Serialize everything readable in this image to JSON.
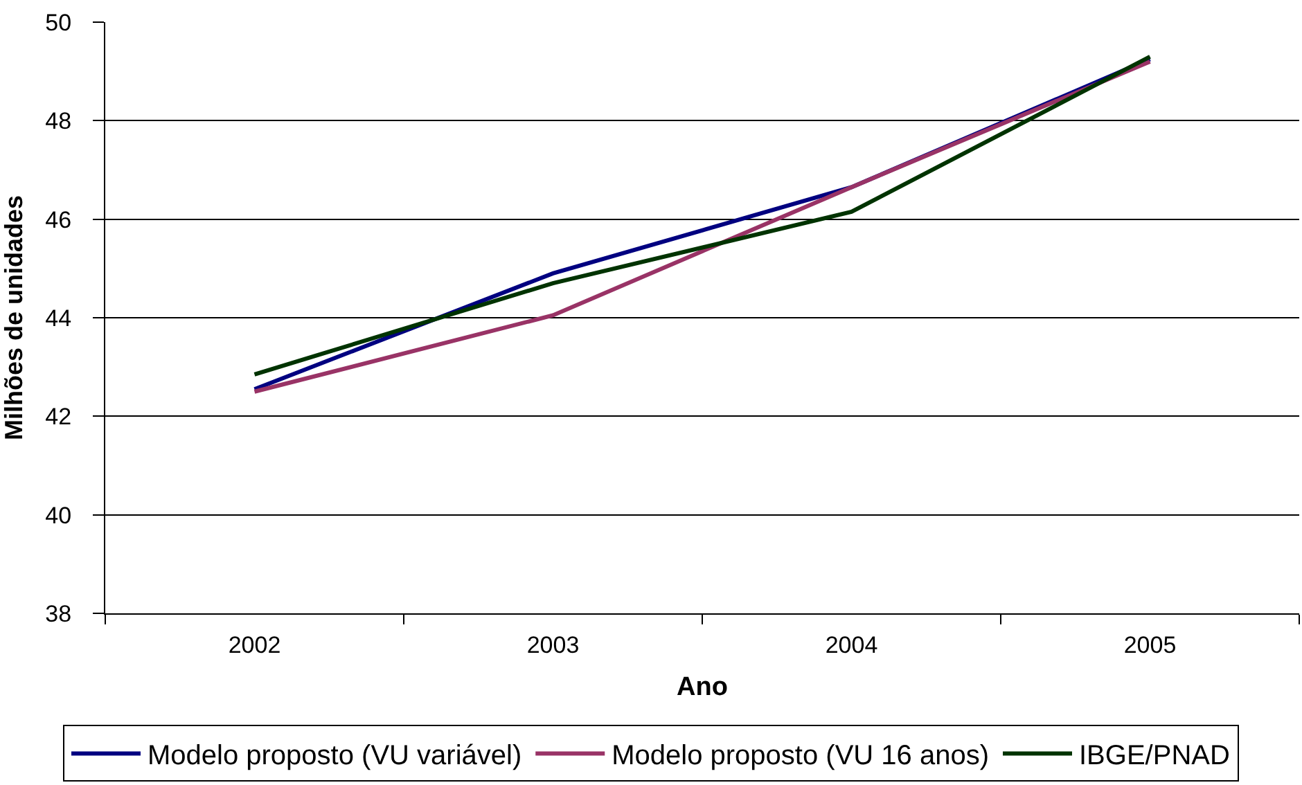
{
  "chart_data": {
    "type": "line",
    "xlabel": "Ano",
    "ylabel": "Milhões de unidades",
    "categories": [
      "2002",
      "2003",
      "2004",
      "2005"
    ],
    "series": [
      {
        "name": "Modelo proposto (VU variável)",
        "color": "#000080",
        "values": [
          42.55,
          44.9,
          46.65,
          49.25
        ]
      },
      {
        "name": "Modelo proposto (VU 16 anos)",
        "color": "#993366",
        "values": [
          42.5,
          44.05,
          46.65,
          49.2
        ]
      },
      {
        "name": "IBGE/PNAD",
        "color": "#003300",
        "values": [
          42.85,
          44.7,
          46.15,
          49.3
        ]
      }
    ],
    "ylim": [
      38,
      50
    ],
    "yticks": [
      38,
      40,
      42,
      44,
      46,
      48,
      50
    ],
    "grid": "y",
    "legend": "bottom",
    "marker": "none",
    "line_style": "solid"
  }
}
